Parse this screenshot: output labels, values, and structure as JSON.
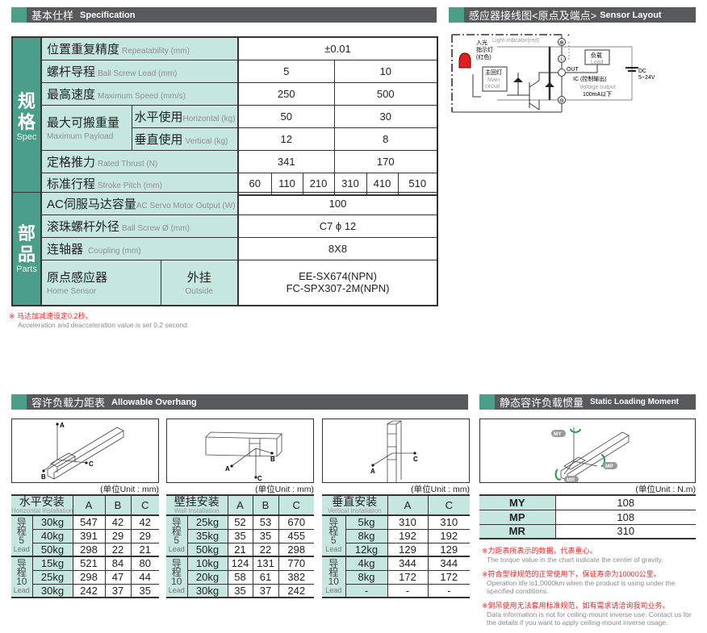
{
  "spec": {
    "header_cn": "基本仕样",
    "header_en": "Specification",
    "group_spec": {
      "cn": "规格",
      "en": "Spec"
    },
    "group_parts": {
      "cn": "部品",
      "en": "Parts"
    },
    "repeatability": {
      "cn": "位置重复精度",
      "en": "Repeatability (mm)",
      "value": "±0.01"
    },
    "lead": {
      "cn": "螺杆导程",
      "en": "Ball Screw Lead (mm)",
      "values": [
        "5",
        "10"
      ]
    },
    "speed": {
      "cn": "最高速度",
      "en": "Maximum Speed (mm/s)",
      "values": [
        "250",
        "500"
      ]
    },
    "payload": {
      "cn": "最大可搬重量",
      "en": "Maximum Payload",
      "horizontal": {
        "cn": "水平使用",
        "en": "Horizontal (kg)",
        "values": [
          "50",
          "30"
        ]
      },
      "vertical": {
        "cn": "垂直使用",
        "en": "Vertical (kg)",
        "values": [
          "12",
          "8"
        ]
      }
    },
    "thrust": {
      "cn": "定格推力",
      "en": "Rated Thrust (N)",
      "values": [
        "341",
        "170"
      ]
    },
    "stroke": {
      "cn": "标准行程",
      "en": "Stroke Pitch (mm)",
      "values": [
        "60",
        "110",
        "210",
        "310",
        "410",
        "510"
      ]
    },
    "motor": {
      "cn": "AC伺服马达容量",
      "en": "AC Servo Motor Output (W)",
      "value": "100"
    },
    "screw": {
      "cn": "滚珠螺杆外径",
      "en": "Ball Screw Ø (mm)",
      "value": "C7 ϕ 12"
    },
    "coupling": {
      "cn": "连轴器",
      "en": "Coupling (mm)",
      "value": "8X8"
    },
    "home_sensor": {
      "cn": "原点感应器",
      "en": "Home Sensor",
      "sub_cn": "外挂",
      "sub_en": "Outside",
      "values": [
        "EE-SX674(NPN)",
        "FC-SPX307-2M(NPN)"
      ]
    },
    "note_cn": "※ 马达加减速设定0.2秒。",
    "note_en": "Acceleration and deacceleration value is set 0.2 second."
  },
  "sensor": {
    "header_cn": "感应器接线图<原点及端点>",
    "header_en": "Sensor Layout",
    "labels": {
      "light_indicator": "Light indicator(red)",
      "led_cn1": "入光",
      "led_cn2": "指示灯",
      "led_cn3": "(红色)",
      "plus": "⊕",
      "asterisk": "*",
      "l_term": "Ⓛ",
      "minus": "⊖",
      "load_cn": "负载",
      "load_en": "Load",
      "out": "OUT",
      "main_cn": "主回灯",
      "main_en1": "Main",
      "main_en2": "circuit",
      "ic": "IC (控制输出)",
      "voltage_output": "Voltage output",
      "current": "100mA以下",
      "dc": "DC",
      "voltage": "5~24V"
    }
  },
  "overhang": {
    "header_cn": "容许负载力距表",
    "header_en": "Allowable Overhang",
    "unit": "(单位Unit : mm)",
    "tables": [
      {
        "title_cn": "水平安装",
        "title_en": "Horizontal Installation",
        "cols": [
          "A",
          "B",
          "C"
        ],
        "diagram_labels": {
          "a": "A",
          "b": "B",
          "c": "C"
        },
        "groups": [
          {
            "lead_cn1": "导",
            "lead_cn2": "程",
            "lead_num": "5",
            "lead_en": "Lead",
            "rows": [
              [
                "30kg",
                "547",
                "42",
                "42"
              ],
              [
                "40kg",
                "391",
                "29",
                "29"
              ],
              [
                "50kg",
                "298",
                "22",
                "21"
              ]
            ]
          },
          {
            "lead_cn1": "导",
            "lead_cn2": "程",
            "lead_num": "10",
            "lead_en": "Lead",
            "rows": [
              [
                "15kg",
                "521",
                "84",
                "80"
              ],
              [
                "25kg",
                "298",
                "47",
                "44"
              ],
              [
                "30kg",
                "242",
                "37",
                "35"
              ]
            ]
          }
        ]
      },
      {
        "title_cn": "壁挂安装",
        "title_en": "Wall Installation",
        "cols": [
          "A",
          "B",
          "C"
        ],
        "diagram_labels": {
          "a": "A",
          "b": "B",
          "c": "C"
        },
        "groups": [
          {
            "lead_cn1": "导",
            "lead_cn2": "程",
            "lead_num": "5",
            "lead_en": "Lead",
            "rows": [
              [
                "25kg",
                "52",
                "53",
                "670"
              ],
              [
                "35kg",
                "35",
                "35",
                "455"
              ],
              [
                "50kg",
                "21",
                "22",
                "298"
              ]
            ]
          },
          {
            "lead_cn1": "导",
            "lead_cn2": "程",
            "lead_num": "10",
            "lead_en": "Lead",
            "rows": [
              [
                "10kg",
                "124",
                "131",
                "770"
              ],
              [
                "20kg",
                "58",
                "61",
                "382"
              ],
              [
                "30kg",
                "35",
                "37",
                "242"
              ]
            ]
          }
        ]
      },
      {
        "title_cn": "垂直安装",
        "title_en": "Vertical Installation",
        "cols": [
          "A",
          "C"
        ],
        "diagram_labels": {
          "a": "A",
          "c": "C"
        },
        "groups": [
          {
            "lead_cn1": "导",
            "lead_cn2": "程",
            "lead_num": "5",
            "lead_en": "Lead",
            "rows": [
              [
                "5kg",
                "310",
                "310"
              ],
              [
                "8kg",
                "192",
                "192"
              ],
              [
                "12kg",
                "129",
                "129"
              ]
            ]
          },
          {
            "lead_cn1": "导",
            "lead_cn2": "程",
            "lead_num": "10",
            "lead_en": "Lead",
            "rows": [
              [
                "4kg",
                "344",
                "344"
              ],
              [
                "8kg",
                "172",
                "172"
              ],
              [
                "-",
                "-",
                "-"
              ]
            ]
          }
        ]
      }
    ]
  },
  "static_moment": {
    "header_cn": "静态容许负载惯量",
    "header_en": "Static Loading Moment",
    "unit": "(单位Unit : N.m)",
    "diagram_labels": {
      "my": "MY",
      "mp": "MP",
      "mr": "MR"
    },
    "rows": [
      {
        "key": "MY",
        "value": "108"
      },
      {
        "key": "MP",
        "value": "108"
      },
      {
        "key": "MR",
        "value": "310"
      }
    ],
    "notes": [
      {
        "cn": "※力距表所表示的数据，代表重心。",
        "en": "The torque value in the chart indicate the center of gravity."
      },
      {
        "cn": "※符合型禄规范的正常使用下，保证寿命为10000公里。",
        "en": "Operation life is1,0000km when the product is using under the specified conditions."
      },
      {
        "cn": "※倒吊使用无法套用标准规范，如有需求请洽询我司业务。",
        "en": "Data information is not for ceiling-mount inverse use. Contact us for the details if you want to apply ceiling-mount inverse usage."
      }
    ]
  },
  "colors": {
    "accent_green": "#4a9e8a",
    "label_teal": "#c6e7df",
    "header_gray": "#58595b",
    "note_red": "#e8262b",
    "led_red": "#e02020",
    "arrow_green": "#2a9a4a"
  }
}
